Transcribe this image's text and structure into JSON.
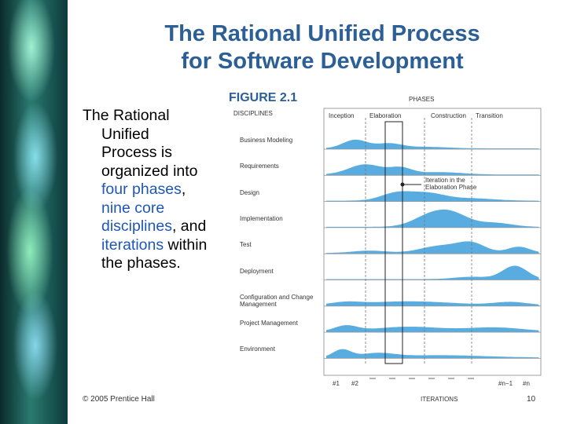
{
  "title": [
    "The Rational Unified Process",
    "for Software Development"
  ],
  "body": {
    "intro": "The Rational Unified Process is organized into",
    "phases": "four phases",
    "sep1": ",",
    "disciplines": "nine core disciplines",
    "sep2": ", and",
    "iterations": "iterations",
    "outro": "within the phases."
  },
  "figure": {
    "title": "FIGURE 2.1",
    "phases_label": "PHASES",
    "disciplines_label": "DISCIPLINES",
    "phases": [
      "Inception",
      "Elaboration",
      "Construction",
      "Transition"
    ],
    "disciplines": [
      "Business Modeling",
      "Requirements",
      "Design",
      "Implementation",
      "Test",
      "Deployment",
      "Configuration and Change Management",
      "Project Management",
      "Environment"
    ],
    "annotation": "Iteration in the Elaboration Phase",
    "iterations": [
      "#1",
      "#2",
      "#n−1",
      "#n"
    ],
    "iterations_label": "ITERATIONS"
  },
  "footer": {
    "copyright": "© 2005  Prentice Hall",
    "page": "10"
  }
}
